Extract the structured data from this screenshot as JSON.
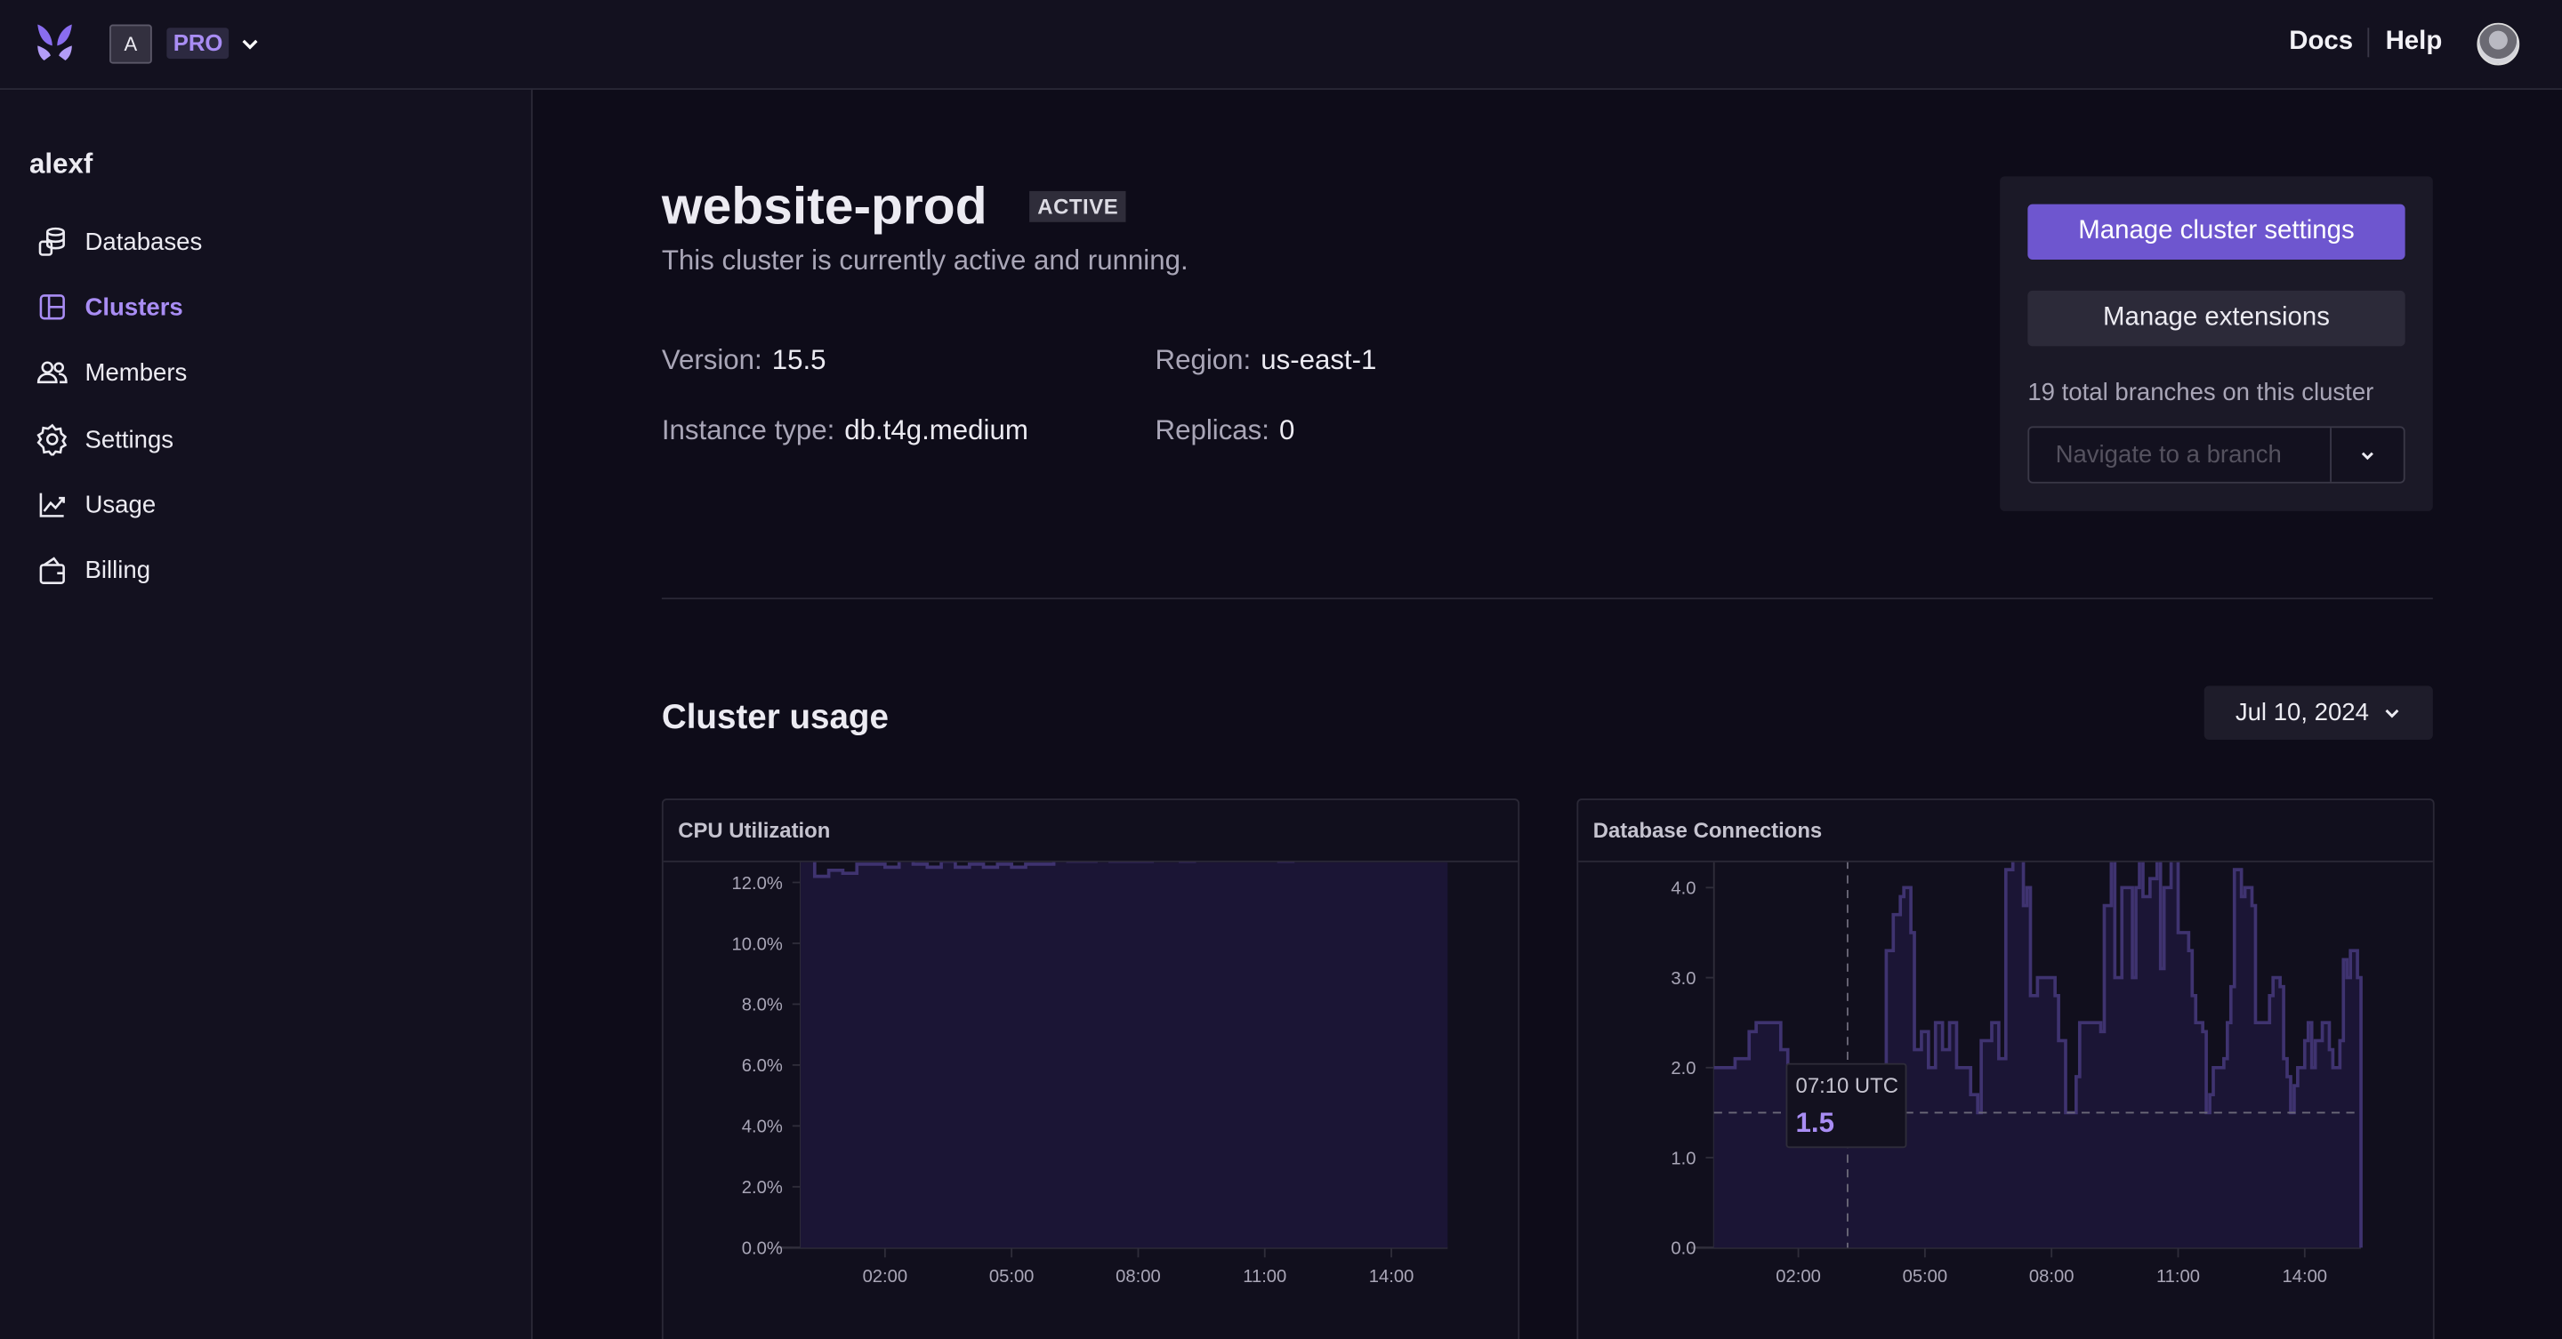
{
  "topbar": {
    "logo": "butterfly-logo",
    "account_initial": "A",
    "plan": "PRO",
    "links": [
      "Docs",
      "Help"
    ]
  },
  "sidebar": {
    "user": "alexf",
    "items": [
      {
        "label": "Databases",
        "icon": "database-icon"
      },
      {
        "label": "Clusters",
        "icon": "cluster-icon",
        "active": true
      },
      {
        "label": "Members",
        "icon": "users-icon"
      },
      {
        "label": "Settings",
        "icon": "gear-icon"
      },
      {
        "label": "Usage",
        "icon": "chart-line-icon"
      },
      {
        "label": "Billing",
        "icon": "wallet-icon"
      }
    ]
  },
  "cluster": {
    "name": "website-prod",
    "status": "ACTIVE",
    "description": "This cluster is currently active and running.",
    "version_label": "Version:",
    "version": "15.5",
    "region_label": "Region:",
    "region": "us-east-1",
    "instance_label": "Instance type:",
    "instance": "db.t4g.medium",
    "replicas_label": "Replicas:",
    "replicas": "0"
  },
  "panel": {
    "manage_settings": "Manage cluster settings",
    "manage_extensions": "Manage extensions",
    "branches_text": "19 total branches on this cluster",
    "branch_placeholder": "Navigate to a branch"
  },
  "usage": {
    "title": "Cluster usage",
    "date": "Jul 10, 2024"
  },
  "colors": {
    "accent": "#6e56cf",
    "accent_text": "#a98df4",
    "series_line": "#3f3370",
    "series_fill": "#1b1535"
  },
  "chart_data": [
    {
      "type": "area",
      "title": "CPU Utilization",
      "x_ticks": [
        "02:00",
        "05:00",
        "08:00",
        "11:00",
        "14:00"
      ],
      "y_ticks": [
        "0.0%",
        "2.0%",
        "4.0%",
        "6.0%",
        "8.0%",
        "10.0%",
        "12.0%"
      ],
      "ylim": [
        0,
        13.2
      ],
      "xlim": [
        "00:00",
        "15:20"
      ],
      "step": true,
      "points": [
        [
          "00:00",
          12.8
        ],
        [
          "00:20",
          12.2
        ],
        [
          "00:40",
          12.4
        ],
        [
          "01:00",
          12.3
        ],
        [
          "01:20",
          12.6
        ],
        [
          "01:40",
          12.6
        ],
        [
          "02:00",
          12.5
        ],
        [
          "02:20",
          12.8
        ],
        [
          "02:40",
          12.6
        ],
        [
          "03:00",
          12.5
        ],
        [
          "03:20",
          12.7
        ],
        [
          "03:40",
          12.5
        ],
        [
          "04:00",
          12.6
        ],
        [
          "04:20",
          12.5
        ],
        [
          "04:40",
          12.6
        ],
        [
          "05:00",
          12.5
        ],
        [
          "05:20",
          12.6
        ],
        [
          "05:40",
          12.6
        ],
        [
          "06:00",
          12.8
        ],
        [
          "06:20",
          12.7
        ],
        [
          "06:40",
          12.7
        ],
        [
          "07:00",
          12.9
        ],
        [
          "07:20",
          12.7
        ],
        [
          "07:40",
          12.7
        ],
        [
          "08:00",
          12.7
        ],
        [
          "08:20",
          12.8
        ],
        [
          "08:40",
          12.8
        ],
        [
          "09:00",
          12.7
        ],
        [
          "09:20",
          12.9
        ],
        [
          "09:40",
          12.8
        ],
        [
          "10:00",
          12.8
        ],
        [
          "10:20",
          12.9
        ],
        [
          "10:40",
          12.9
        ],
        [
          "11:00",
          13.0
        ],
        [
          "11:20",
          12.7
        ],
        [
          "11:40",
          12.8
        ],
        [
          "12:00",
          13.0
        ],
        [
          "12:20",
          12.9
        ],
        [
          "12:40",
          12.8
        ],
        [
          "13:00",
          12.9
        ],
        [
          "13:20",
          12.8
        ],
        [
          "13:40",
          12.8
        ],
        [
          "14:00",
          12.8
        ],
        [
          "14:20",
          12.8
        ],
        [
          "14:40",
          12.8
        ],
        [
          "15:00",
          12.9
        ],
        [
          "15:20",
          12.8
        ]
      ]
    },
    {
      "type": "area",
      "title": "Database Connections",
      "x_ticks": [
        "02:00",
        "05:00",
        "08:00",
        "11:00",
        "14:00"
      ],
      "y_ticks": [
        "0.0",
        "1.0",
        "2.0",
        "3.0",
        "4.0"
      ],
      "ylim": [
        0,
        4.5
      ],
      "xlim": [
        "00:00",
        "15:20"
      ],
      "step": true,
      "reference_line": 1.5,
      "tooltip": {
        "time": "07:10 UTC",
        "value": "1.5"
      },
      "crosshair": "03:10",
      "points": [
        [
          "00:00",
          2.0
        ],
        [
          "00:30",
          2.1
        ],
        [
          "00:50",
          2.4
        ],
        [
          "01:00",
          2.5
        ],
        [
          "01:35",
          2.2
        ],
        [
          "01:45",
          2.0
        ],
        [
          "02:30",
          1.8
        ],
        [
          "03:00",
          1.7
        ],
        [
          "03:10",
          1.5
        ],
        [
          "03:20",
          1.8
        ],
        [
          "03:30",
          2.0
        ],
        [
          "04:05",
          3.3
        ],
        [
          "04:15",
          3.7
        ],
        [
          "04:25",
          3.9
        ],
        [
          "04:30",
          4.0
        ],
        [
          "04:40",
          3.5
        ],
        [
          "04:45",
          2.2
        ],
        [
          "04:55",
          2.4
        ],
        [
          "05:05",
          2.0
        ],
        [
          "05:15",
          2.5
        ],
        [
          "05:25",
          2.2
        ],
        [
          "05:35",
          2.5
        ],
        [
          "05:45",
          2.0
        ],
        [
          "06:05",
          1.7
        ],
        [
          "06:15",
          1.5
        ],
        [
          "06:20",
          2.3
        ],
        [
          "06:35",
          2.5
        ],
        [
          "06:45",
          2.1
        ],
        [
          "06:55",
          4.2
        ],
        [
          "07:05",
          4.5
        ],
        [
          "07:20",
          3.8
        ],
        [
          "07:25",
          4.0
        ],
        [
          "07:30",
          2.8
        ],
        [
          "07:40",
          3.0
        ],
        [
          "08:05",
          2.8
        ],
        [
          "08:10",
          2.3
        ],
        [
          "08:20",
          1.5
        ],
        [
          "08:35",
          1.9
        ],
        [
          "08:40",
          2.5
        ],
        [
          "09:10",
          2.4
        ],
        [
          "09:15",
          3.8
        ],
        [
          "09:25",
          4.4
        ],
        [
          "09:30",
          3.0
        ],
        [
          "09:40",
          4.0
        ],
        [
          "09:55",
          3.0
        ],
        [
          "10:00",
          4.0
        ],
        [
          "10:05",
          4.5
        ],
        [
          "10:10",
          3.9
        ],
        [
          "10:20",
          4.1
        ],
        [
          "10:30",
          4.4
        ],
        [
          "10:35",
          3.1
        ],
        [
          "10:40",
          4.0
        ],
        [
          "10:50",
          4.4
        ],
        [
          "11:00",
          3.5
        ],
        [
          "11:15",
          3.3
        ],
        [
          "11:20",
          2.8
        ],
        [
          "11:25",
          2.5
        ],
        [
          "11:35",
          2.4
        ],
        [
          "11:40",
          1.5
        ],
        [
          "11:45",
          1.7
        ],
        [
          "11:50",
          2.0
        ],
        [
          "12:05",
          2.1
        ],
        [
          "12:10",
          2.5
        ],
        [
          "12:15",
          2.9
        ],
        [
          "12:20",
          4.2
        ],
        [
          "12:30",
          3.9
        ],
        [
          "12:35",
          4.0
        ],
        [
          "12:45",
          3.8
        ],
        [
          "12:50",
          2.5
        ],
        [
          "13:10",
          2.8
        ],
        [
          "13:15",
          3.0
        ],
        [
          "13:25",
          2.9
        ],
        [
          "13:30",
          2.1
        ],
        [
          "13:35",
          1.9
        ],
        [
          "13:40",
          1.5
        ],
        [
          "13:45",
          1.8
        ],
        [
          "13:50",
          2.0
        ],
        [
          "14:00",
          2.3
        ],
        [
          "14:05",
          2.5
        ],
        [
          "14:10",
          2.0
        ],
        [
          "14:15",
          2.3
        ],
        [
          "14:25",
          2.5
        ],
        [
          "14:35",
          2.2
        ],
        [
          "14:40",
          2.0
        ],
        [
          "14:50",
          2.3
        ],
        [
          "14:55",
          3.2
        ],
        [
          "15:00",
          3.0
        ],
        [
          "15:05",
          3.3
        ],
        [
          "15:15",
          3.0
        ],
        [
          "15:20",
          0
        ]
      ]
    }
  ]
}
